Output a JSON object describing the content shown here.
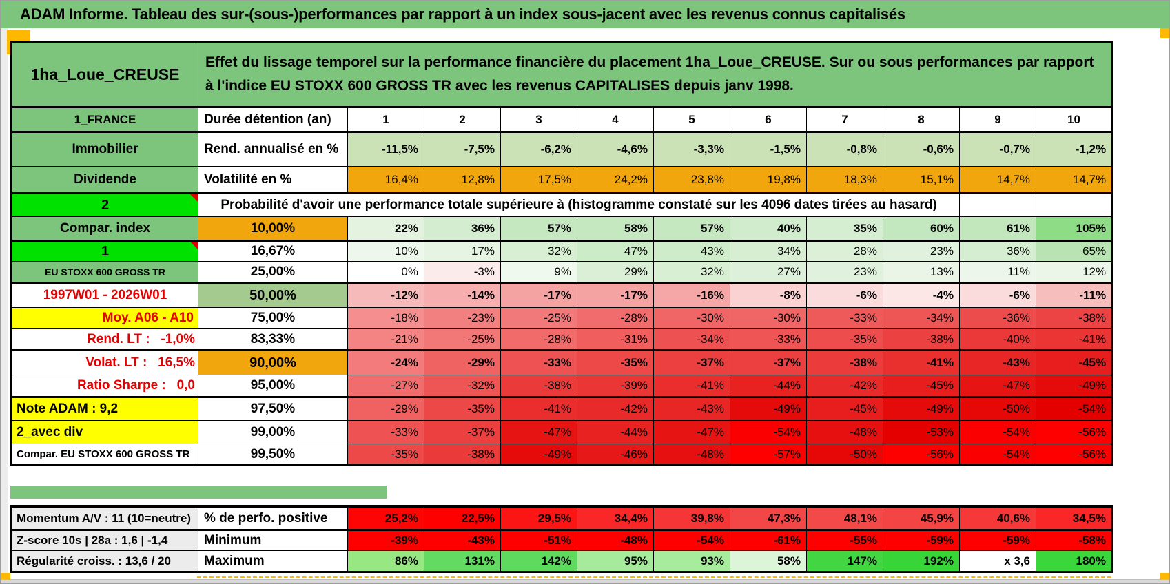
{
  "title": "ADAM Informe. Tableau des sur-(sous-)performances par rapport à un index sous-jacent avec les revenus connus capitalisés",
  "product": {
    "name": "1ha_Loue_CREUSE",
    "description": "Effet du lissage temporel sur la performance financière du placement 1ha_Loue_CREUSE. Sur ou sous performances par rapport à l'indice EU STOXX 600 GROSS TR avec les revenus CAPITALISES depuis janv 1998."
  },
  "palette": {
    "header_green": "#7dc57d",
    "bright_green": "#00e100",
    "sage_green": "#a5ca90",
    "orange": "#f2a60d",
    "yellow": "#ffff00",
    "red_text": "#e60000",
    "label_gray": "#ececec",
    "page_break_orange": "#ffb800"
  },
  "main_rows": [
    {
      "id": "duration",
      "a": {
        "t": "1_FRANCE",
        "bg": "#7dc57d",
        "bold": true,
        "size": 17
      },
      "b": {
        "t": "Durée détention (an)",
        "bg": "#ffffff",
        "bold": true,
        "align": "left"
      },
      "bold_cells": true,
      "cell_align": "center",
      "cells": [
        "1",
        "2",
        "3",
        "4",
        "5",
        "6",
        "7",
        "8",
        "9",
        "10"
      ],
      "bgs": [
        "#ffffff",
        "#ffffff",
        "#ffffff",
        "#ffffff",
        "#ffffff",
        "#ffffff",
        "#ffffff",
        "#ffffff",
        "#ffffff",
        "#ffffff"
      ]
    },
    {
      "id": "rend-annualise",
      "a": {
        "t": "Immobilier",
        "bg": "#7dc57d",
        "bold": true
      },
      "b": {
        "t": "Rend. annualisé en %",
        "bg": "#ffffff",
        "bold": true,
        "align": "left"
      },
      "bold_cells": true,
      "cells": [
        "-11,5%",
        "-7,5%",
        "-6,2%",
        "-4,6%",
        "-3,3%",
        "-1,5%",
        "-0,8%",
        "-0,6%",
        "-0,7%",
        "-1,2%"
      ],
      "bgs": [
        "#cbe2b6",
        "#cbe2b6",
        "#cbe2b6",
        "#cbe2b6",
        "#cbe2b6",
        "#cbe2b6",
        "#cbe2b6",
        "#cbe2b6",
        "#cbe2b6",
        "#cbe2b6"
      ]
    },
    {
      "id": "volatilite",
      "a": {
        "t": "Dividende",
        "bg": "#7dc57d",
        "bold": true
      },
      "b": {
        "t": "Volatilité en %",
        "bg": "#ffffff",
        "bold": true,
        "align": "left"
      },
      "cells": [
        "16,4%",
        "12,8%",
        "17,5%",
        "24,2%",
        "23,8%",
        "19,8%",
        "18,3%",
        "15,1%",
        "14,7%",
        "14,7%"
      ],
      "bgs": [
        "#f2a60d",
        "#f2a60d",
        "#f2a60d",
        "#f2a60d",
        "#f2a60d",
        "#f2a60d",
        "#f2a60d",
        "#f2a60d",
        "#f2a60d",
        "#f2a60d"
      ]
    },
    {
      "id": "probabilite",
      "a": {
        "t": "2",
        "bg": "#00e100",
        "bold": true,
        "size": 20,
        "marker": true
      },
      "merged": {
        "t": "Probabilité d'avoir une performance totale supérieure à (histogramme constaté sur les 4096 dates tirées au hasard)",
        "bg": "#ffffff",
        "bold": true
      },
      "tail": [
        "",
        ""
      ]
    },
    {
      "id": "p10",
      "a": {
        "t": "Compar. index",
        "bg": "#7dc57d",
        "bold": true
      },
      "b": {
        "t": "10,00%",
        "bg": "#f2a60d",
        "bold": true
      },
      "bold_cells": true,
      "cells": [
        "22%",
        "36%",
        "57%",
        "58%",
        "57%",
        "40%",
        "35%",
        "60%",
        "61%",
        "105%"
      ],
      "bgs": [
        "#e3f3e0",
        "#d4edd0",
        "#c6e8c1",
        "#c5e8c0",
        "#c6e8c1",
        "#d1eccc",
        "#d5eed1",
        "#c3e7be",
        "#c2e7bd",
        "#8edc85"
      ]
    },
    {
      "id": "p1667",
      "a": {
        "t": "1",
        "bg": "#00e100",
        "bold": true,
        "size": 20,
        "marker": true
      },
      "b": {
        "t": "16,67%",
        "bg": "#ffffff",
        "bold": true
      },
      "cells": [
        "10%",
        "17%",
        "32%",
        "47%",
        "43%",
        "34%",
        "28%",
        "23%",
        "36%",
        "65%"
      ],
      "bgs": [
        "#eef7ec",
        "#e6f4e3",
        "#d8efd4",
        "#ccebc7",
        "#cfecca",
        "#d7eed3",
        "#dcf0d8",
        "#e0f2dd",
        "#d5edd1",
        "#b9e3b2"
      ]
    },
    {
      "id": "p25",
      "a": {
        "t": "EU STOXX 600 GROSS TR",
        "bg": "#7dc57d",
        "bold": true,
        "size": 14
      },
      "b": {
        "t": "25,00%",
        "bg": "#ffffff",
        "bold": true
      },
      "cells": [
        "0%",
        "-3%",
        "9%",
        "29%",
        "32%",
        "27%",
        "23%",
        "13%",
        "11%",
        "12%"
      ],
      "bgs": [
        "#ffffff",
        "#fcebeb",
        "#f0f9ee",
        "#dbefd7",
        "#d8efd4",
        "#ddf0d9",
        "#e0f2dd",
        "#eaf5e8",
        "#ecf6ea",
        "#ebf6e9"
      ]
    },
    {
      "id": "p50",
      "a": {
        "t": "1997W01 - 2026W01",
        "bg": "#ffffff",
        "fg": "#e60000",
        "bold": true
      },
      "b": {
        "t": "50,00%",
        "bg": "#a5ca90",
        "bold": true,
        "size": 20
      },
      "bold_cells": true,
      "cells": [
        "-12%",
        "-14%",
        "-17%",
        "-17%",
        "-16%",
        "-8%",
        "-6%",
        "-4%",
        "-6%",
        "-11%"
      ],
      "bgs": [
        "#f7baba",
        "#f6aeae",
        "#f4a2a2",
        "#f4a2a2",
        "#f5a6a6",
        "#fad2d2",
        "#fbdcdc",
        "#fce6e6",
        "#fbdcdc",
        "#f7bebe"
      ]
    },
    {
      "id": "p75",
      "a": {
        "t": "Moy. A06 - A10",
        "bg": "#ffff00",
        "fg": "#e60000",
        "bold": true,
        "align": "right"
      },
      "b": {
        "t": "75,00%",
        "bg": "#ffffff",
        "bold": true
      },
      "cells": [
        "-18%",
        "-23%",
        "-25%",
        "-28%",
        "-30%",
        "-30%",
        "-33%",
        "-34%",
        "-36%",
        "-38%"
      ],
      "bgs": [
        "#f58f8f",
        "#f38080",
        "#f27979",
        "#f16d6d",
        "#f06565",
        "#f06565",
        "#ee5959",
        "#ee5555",
        "#ed4c4c",
        "#ec4444"
      ]
    },
    {
      "id": "p8333",
      "a": {
        "t": "Rend. LT :   -1,0%",
        "bg": "#ffffff",
        "fg": "#e60000",
        "bold": true,
        "align": "right",
        "pre": true
      },
      "b": {
        "t": "83,33%",
        "bg": "#ffffff",
        "bold": true
      },
      "cells": [
        "-21%",
        "-25%",
        "-28%",
        "-31%",
        "-34%",
        "-33%",
        "-35%",
        "-38%",
        "-40%",
        "-41%"
      ],
      "bgs": [
        "#f48484",
        "#f27777",
        "#f16b6b",
        "#f05e5e",
        "#ee5151",
        "#ef5555",
        "#ee4d4d",
        "#ec4141",
        "#eb3939",
        "#eb3535"
      ]
    },
    {
      "id": "p90",
      "a": {
        "t": "Volat. LT :   16,5%",
        "bg": "#ffffff",
        "fg": "#e60000",
        "bold": true,
        "align": "right",
        "pre": true
      },
      "b": {
        "t": "90,00%",
        "bg": "#f2a60d",
        "bold": true,
        "size": 20
      },
      "bold_cells": true,
      "cells": [
        "-24%",
        "-29%",
        "-33%",
        "-35%",
        "-37%",
        "-37%",
        "-38%",
        "-41%",
        "-43%",
        "-45%"
      ],
      "bgs": [
        "#f37b7b",
        "#f06363",
        "#ee5252",
        "#ed4949",
        "#ec3f3f",
        "#ec3f3f",
        "#eb3b3b",
        "#ea2f2f",
        "#e92626",
        "#e81d1d"
      ]
    },
    {
      "id": "p95",
      "a": {
        "t": "Ratio Sharpe :   0,0",
        "bg": "#ffffff",
        "fg": "#e60000",
        "bold": true,
        "align": "right",
        "pre": true
      },
      "b": {
        "t": "95,00%",
        "bg": "#ffffff",
        "bold": true
      },
      "cells": [
        "-27%",
        "-32%",
        "-38%",
        "-39%",
        "-41%",
        "-44%",
        "-42%",
        "-45%",
        "-47%",
        "-49%"
      ],
      "bgs": [
        "#f16c6c",
        "#ee5656",
        "#eb3a3a",
        "#eb3636",
        "#ea2e2e",
        "#e82121",
        "#e92a2a",
        "#e81d1d",
        "#e71414",
        "#e60b0b"
      ]
    },
    {
      "id": "p975",
      "a": {
        "t": "Note ADAM : 9,2",
        "bg": "#ffff00",
        "bold": true,
        "align": "left"
      },
      "b": {
        "t": "97,50%",
        "bg": "#ffffff",
        "bold": true
      },
      "cells": [
        "-29%",
        "-35%",
        "-41%",
        "-42%",
        "-43%",
        "-49%",
        "-45%",
        "-49%",
        "-50%",
        "-54%"
      ],
      "bgs": [
        "#f06161",
        "#ed4848",
        "#ea2e2e",
        "#e92a2a",
        "#e92626",
        "#e60b0b",
        "#e81d1d",
        "#e60b0b",
        "#e60707",
        "#e50000"
      ]
    },
    {
      "id": "p99",
      "a": {
        "t": "2_avec div",
        "bg": "#ffff00",
        "bold": true,
        "align": "left"
      },
      "b": {
        "t": "99,00%",
        "bg": "#ffffff",
        "bold": true
      },
      "cells": [
        "-33%",
        "-37%",
        "-47%",
        "-44%",
        "-47%",
        "-54%",
        "-48%",
        "-53%",
        "-54%",
        "-56%"
      ],
      "bgs": [
        "#ee5252",
        "#ec3f3f",
        "#e71414",
        "#e82121",
        "#e71414",
        "#fb0000",
        "#e71010",
        "#e50000",
        "#fb0000",
        "#ff0000"
      ]
    },
    {
      "id": "p995",
      "a": {
        "t": "Compar. EU STOXX 600 GROSS TR",
        "bg": "#ffffff",
        "bold": true,
        "align": "left",
        "size": 15
      },
      "b": {
        "t": "99,50%",
        "bg": "#ffffff",
        "bold": true
      },
      "cells": [
        "-35%",
        "-38%",
        "-49%",
        "-46%",
        "-48%",
        "-57%",
        "-50%",
        "-56%",
        "-54%",
        "-56%"
      ],
      "bgs": [
        "#ed4949",
        "#eb3a3a",
        "#e60b0b",
        "#e71818",
        "#e71010",
        "#ff0000",
        "#e60707",
        "#fd0000",
        "#fb0000",
        "#ff0000"
      ]
    }
  ],
  "bottom_rows": [
    {
      "id": "perfo-positive",
      "a": {
        "t": "Momentum A/V : 11 (10=neutre)",
        "bg": "#ececec",
        "bold": true,
        "align": "left",
        "size": 17
      },
      "b": {
        "t": "% de perfo. positive",
        "bg": "#ffffff",
        "bold": true,
        "align": "left"
      },
      "bold_cells": true,
      "cells": [
        "25,2%",
        "22,5%",
        "29,5%",
        "34,4%",
        "39,8%",
        "47,3%",
        "48,1%",
        "45,9%",
        "40,6%",
        "34,5%"
      ],
      "bgs": [
        "#fe0505",
        "#ff0000",
        "#fc1515",
        "#f92727",
        "#f63636",
        "#f34747",
        "#f34949",
        "#f44444",
        "#f63838",
        "#f92727"
      ]
    },
    {
      "id": "minimum",
      "a": {
        "t": "Z-score 10s | 28a : 1,6 | -1,4",
        "bg": "#ececec",
        "bold": true,
        "align": "left",
        "size": 17
      },
      "b": {
        "t": "Minimum",
        "bg": "#ffffff",
        "bold": true,
        "align": "left"
      },
      "bold_cells": true,
      "cells": [
        "-39%",
        "-43%",
        "-51%",
        "-48%",
        "-54%",
        "-61%",
        "-55%",
        "-59%",
        "-59%",
        "-58%"
      ],
      "bgs": [
        "#fe0000",
        "#fe0000",
        "#fe0000",
        "#fe0000",
        "#fe0000",
        "#fe0000",
        "#fe0000",
        "#fe0000",
        "#fe0000",
        "#fe0000"
      ]
    },
    {
      "id": "maximum",
      "a": {
        "t": "Régularité croiss. : 13,6 / 20",
        "bg": "#ececec",
        "bold": true,
        "align": "left",
        "size": 17
      },
      "b": {
        "t": "Maximum",
        "bg": "#ffffff",
        "bold": true,
        "align": "left"
      },
      "bold_cells": true,
      "cells": [
        "86%",
        "131%",
        "142%",
        "95%",
        "93%",
        "58%",
        "147%",
        "192%",
        "x 3,6",
        "180%"
      ],
      "bgs": [
        "#97e783",
        "#63db63",
        "#5eda5e",
        "#a5eb9b",
        "#a7eb9d",
        "#dcf4d8",
        "#42d742",
        "#38d538",
        "#ffffff",
        "#3bd63b"
      ]
    }
  ]
}
